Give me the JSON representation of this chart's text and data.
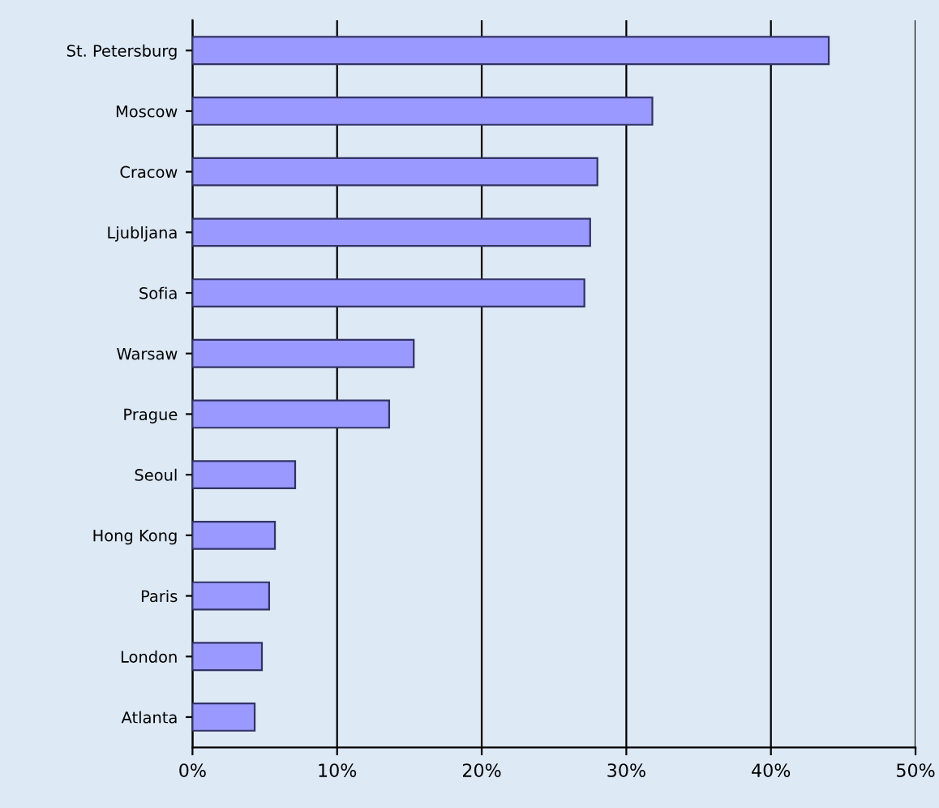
{
  "chart_data": {
    "type": "bar",
    "orientation": "horizontal",
    "categories": [
      "St. Petersburg",
      "Moscow",
      "Cracow",
      "Ljubljana",
      "Sofia",
      "Warsaw",
      "Prague",
      "Seoul",
      "Hong Kong",
      "Paris",
      "London",
      "Atlanta"
    ],
    "values": [
      44.0,
      31.8,
      28.0,
      27.5,
      27.1,
      15.3,
      13.6,
      7.1,
      5.7,
      5.3,
      4.8,
      4.3
    ],
    "color": "#9999ff",
    "xlim": [
      0,
      50
    ],
    "xticks": [
      {
        "value": 0,
        "label": "0%"
      },
      {
        "value": 10,
        "label": "10%"
      },
      {
        "value": 20,
        "label": "20%"
      },
      {
        "value": 30,
        "label": "30%"
      },
      {
        "value": 40,
        "label": "40%"
      },
      {
        "value": 50,
        "label": "50%"
      }
    ],
    "grid": "x",
    "legend": false
  }
}
